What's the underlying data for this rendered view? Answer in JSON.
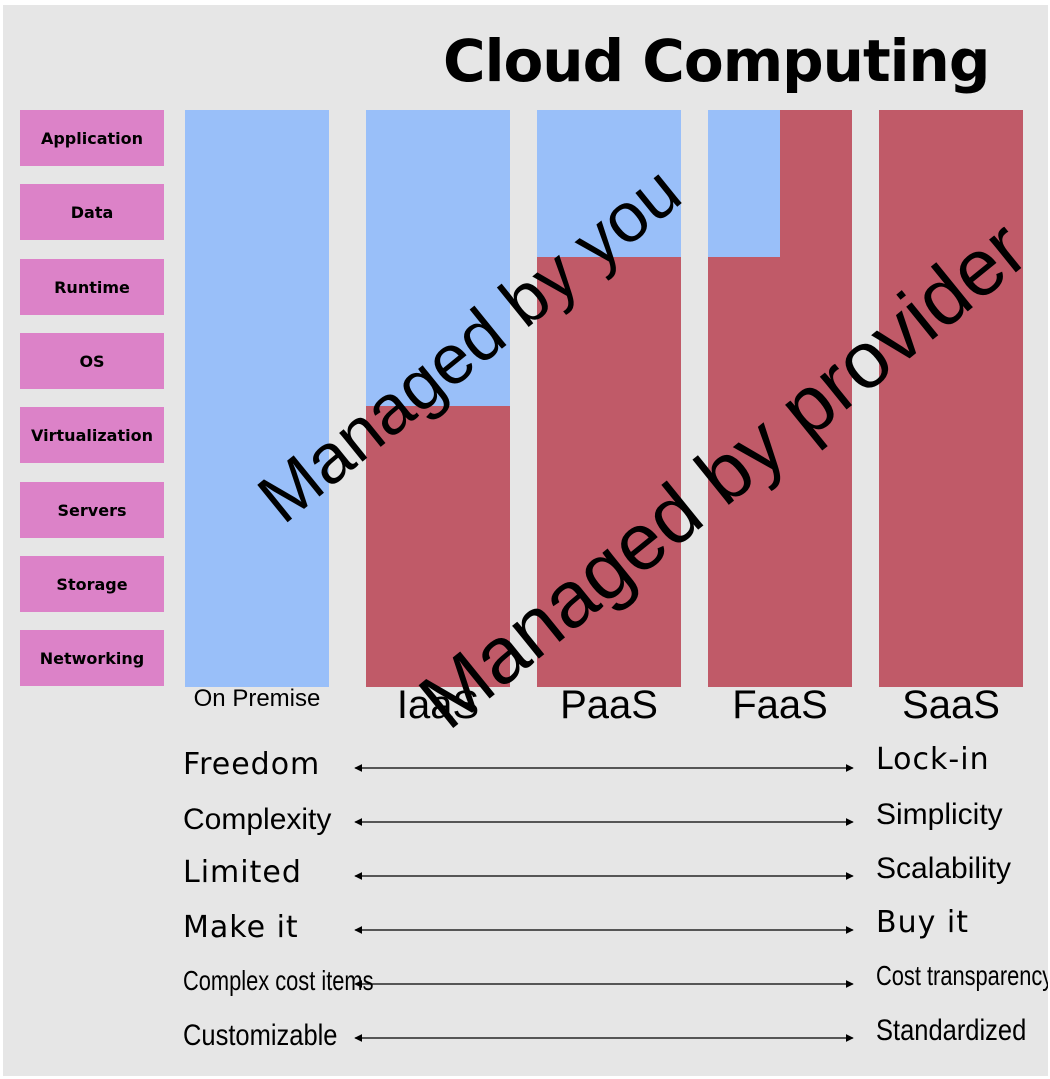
{
  "title": "Cloud Computing",
  "layers": [
    "Application",
    "Data",
    "Runtime",
    "OS",
    "Virtualization",
    "Servers",
    "Storage",
    "Networking"
  ],
  "models": [
    {
      "label": "On Premise",
      "you_layers": 8
    },
    {
      "label": "IaaS",
      "you_layers": 4
    },
    {
      "label": "PaaS",
      "you_layers": 2
    },
    {
      "label": "FaaS",
      "you_layers": 2,
      "you_share_top": 0.5
    },
    {
      "label": "SaaS",
      "you_layers": 0
    }
  ],
  "overlay": {
    "managed_by_you": "Managed by you",
    "managed_by_provider": "Managed by provider"
  },
  "comparisons": [
    {
      "left": "Freedom",
      "right": "Lock-in"
    },
    {
      "left": "Complexity",
      "right": "Simplicity"
    },
    {
      "left": "Limited",
      "right": "Scalability"
    },
    {
      "left": "Make it",
      "right": "Buy it"
    },
    {
      "left": "Complex cost items",
      "right": "Cost transparency"
    },
    {
      "left": "Customizable",
      "right": "Standardized"
    }
  ],
  "colors": {
    "background": "#e6e6e6",
    "layer_box": "#dc82c8",
    "managed_by_you": "#99bff9",
    "managed_by_provider": "#c05a68"
  }
}
